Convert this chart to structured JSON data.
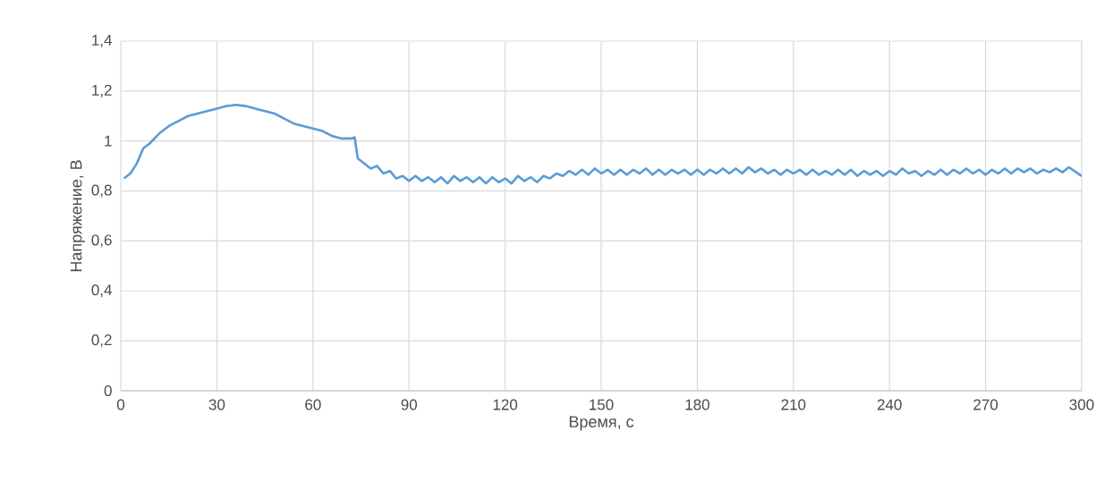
{
  "chart_data": {
    "type": "line",
    "xlabel": "Время, с",
    "ylabel": "Напряжение, В",
    "xlim": [
      0,
      300
    ],
    "xticks": [
      0,
      30,
      60,
      90,
      120,
      150,
      180,
      210,
      240,
      270,
      300
    ],
    "ylim": [
      0,
      1.4
    ],
    "yticks": [
      0,
      {
        "value": 0.2,
        "label": "0,2"
      },
      {
        "value": 0.4,
        "label": "0,4"
      },
      {
        "value": 0.6,
        "label": "0,6"
      },
      {
        "value": 0.8,
        "label": "0,8"
      },
      1,
      {
        "value": 1.2,
        "label": "1,2"
      },
      {
        "value": 1.4,
        "label": "1,4"
      }
    ],
    "grid": true,
    "series": [
      {
        "color": "#5b9bd5",
        "x": [
          1,
          3,
          5,
          7,
          9,
          12,
          15,
          18,
          21,
          24,
          27,
          30,
          33,
          36,
          39,
          42,
          45,
          48,
          51,
          54,
          57,
          60,
          63,
          66,
          69,
          72,
          73,
          74,
          76,
          78,
          80,
          82,
          84,
          86,
          88,
          90,
          92,
          94,
          96,
          98,
          100,
          102,
          104,
          106,
          108,
          110,
          112,
          114,
          116,
          118,
          120,
          122,
          124,
          126,
          128,
          130,
          132,
          134,
          136,
          138,
          140,
          142,
          144,
          146,
          148,
          150,
          152,
          154,
          156,
          158,
          160,
          162,
          164,
          166,
          168,
          170,
          172,
          174,
          176,
          178,
          180,
          182,
          184,
          186,
          188,
          190,
          192,
          194,
          196,
          198,
          200,
          202,
          204,
          206,
          208,
          210,
          212,
          214,
          216,
          218,
          220,
          222,
          224,
          226,
          228,
          230,
          232,
          234,
          236,
          238,
          240,
          242,
          244,
          246,
          248,
          250,
          252,
          254,
          256,
          258,
          260,
          262,
          264,
          266,
          268,
          270,
          272,
          274,
          276,
          278,
          280,
          282,
          284,
          286,
          288,
          290,
          292,
          294,
          296,
          300
        ],
        "values": [
          0.85,
          0.87,
          0.91,
          0.97,
          0.99,
          1.03,
          1.06,
          1.08,
          1.1,
          1.11,
          1.12,
          1.13,
          1.14,
          1.145,
          1.14,
          1.13,
          1.12,
          1.11,
          1.09,
          1.07,
          1.06,
          1.05,
          1.04,
          1.02,
          1.01,
          1.01,
          1.015,
          0.93,
          0.91,
          0.89,
          0.9,
          0.87,
          0.88,
          0.85,
          0.86,
          0.84,
          0.86,
          0.84,
          0.855,
          0.835,
          0.855,
          0.83,
          0.86,
          0.84,
          0.855,
          0.835,
          0.855,
          0.83,
          0.855,
          0.835,
          0.85,
          0.83,
          0.86,
          0.84,
          0.855,
          0.835,
          0.86,
          0.85,
          0.87,
          0.86,
          0.88,
          0.865,
          0.885,
          0.865,
          0.89,
          0.87,
          0.885,
          0.865,
          0.885,
          0.865,
          0.885,
          0.87,
          0.89,
          0.865,
          0.885,
          0.865,
          0.885,
          0.87,
          0.885,
          0.865,
          0.885,
          0.865,
          0.885,
          0.87,
          0.89,
          0.87,
          0.89,
          0.87,
          0.895,
          0.875,
          0.89,
          0.87,
          0.885,
          0.865,
          0.885,
          0.87,
          0.885,
          0.865,
          0.885,
          0.865,
          0.88,
          0.865,
          0.885,
          0.865,
          0.885,
          0.86,
          0.88,
          0.865,
          0.88,
          0.86,
          0.88,
          0.865,
          0.89,
          0.87,
          0.88,
          0.86,
          0.88,
          0.865,
          0.885,
          0.865,
          0.885,
          0.87,
          0.89,
          0.87,
          0.885,
          0.865,
          0.885,
          0.87,
          0.89,
          0.87,
          0.89,
          0.875,
          0.89,
          0.87,
          0.885,
          0.875,
          0.89,
          0.875,
          0.895,
          0.86
        ]
      }
    ]
  }
}
